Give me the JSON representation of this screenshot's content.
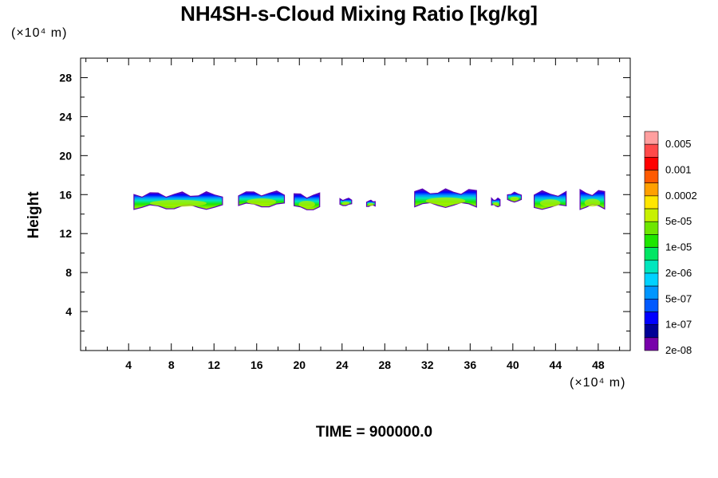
{
  "chart_data": {
    "type": "heatmap",
    "title": "NH4SH-s-Cloud Mixing Ratio [kg/kg]",
    "ylabel": "Height",
    "x_unit": "(×10⁴ m)",
    "y_unit": "(×10⁴ m)",
    "x_ticks": [
      4,
      8,
      12,
      16,
      20,
      24,
      28,
      32,
      36,
      40,
      44,
      48
    ],
    "y_ticks": [
      4,
      8,
      12,
      16,
      20,
      24,
      28
    ],
    "xlim": [
      -0.5,
      51
    ],
    "ylim": [
      0,
      30
    ],
    "colorbar": {
      "labels": [
        "0.005",
        "0.001",
        "0.0002",
        "5e-05",
        "1e-05",
        "2e-06",
        "5e-07",
        "1e-07",
        "2e-08"
      ],
      "colors": [
        "#ff9f9f",
        "#ff4a4a",
        "#ff0000",
        "#ff5a00",
        "#ffa000",
        "#ffe600",
        "#c8f000",
        "#6ee600",
        "#1ee600",
        "#00e664",
        "#00e6be",
        "#00d2ff",
        "#0096ff",
        "#005aff",
        "#0000ff",
        "#000096",
        "#7800aa"
      ]
    },
    "clouds": [
      {
        "x_start": 4.5,
        "x_end": 12.8,
        "y_bottom": 14.6,
        "y_top": 16.2,
        "max_level": "5e-05"
      },
      {
        "x_start": 14.3,
        "x_end": 18.6,
        "y_bottom": 14.8,
        "y_top": 16.3,
        "max_level": "5e-05"
      },
      {
        "x_start": 19.5,
        "x_end": 21.9,
        "y_bottom": 14.5,
        "y_top": 16.1,
        "max_level": "1e-05"
      },
      {
        "x_start": 23.8,
        "x_end": 24.9,
        "y_bottom": 14.9,
        "y_top": 15.6,
        "max_level": "2e-06"
      },
      {
        "x_start": 26.3,
        "x_end": 27.1,
        "y_bottom": 14.8,
        "y_top": 15.4,
        "max_level": "5e-07"
      },
      {
        "x_start": 30.8,
        "x_end": 36.6,
        "y_bottom": 14.8,
        "y_top": 16.5,
        "max_level": "5e-05"
      },
      {
        "x_start": 38.0,
        "x_end": 38.8,
        "y_bottom": 14.8,
        "y_top": 15.6,
        "max_level": "2e-06"
      },
      {
        "x_start": 39.5,
        "x_end": 40.8,
        "y_bottom": 15.3,
        "y_top": 16.2,
        "max_level": "5e-07"
      },
      {
        "x_start": 42.0,
        "x_end": 45.0,
        "y_bottom": 14.6,
        "y_top": 16.3,
        "max_level": "5e-05"
      },
      {
        "x_start": 46.3,
        "x_end": 48.6,
        "y_bottom": 14.6,
        "y_top": 16.4,
        "max_level": "5e-05"
      }
    ]
  },
  "footer": {
    "time_label": "TIME = 900000.0"
  }
}
